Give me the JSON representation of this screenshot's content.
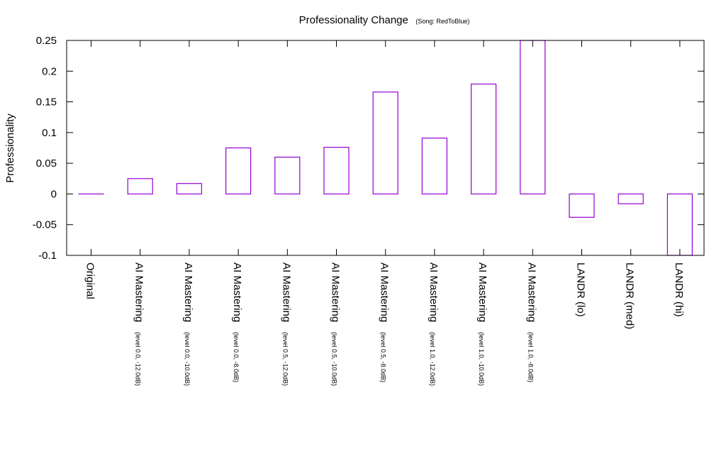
{
  "chart_data": {
    "type": "bar",
    "title": "Professionality Change",
    "subtitle": "(Song: RedToBlue)",
    "xlabel": "",
    "ylabel": "Professionality",
    "ylim": [
      -0.1,
      0.25
    ],
    "yticks": [
      "-0.1",
      "-0.05",
      "0",
      "0.05",
      "0.1",
      "0.15",
      "0.2",
      "0.25"
    ],
    "categories": [
      {
        "main": "Original",
        "sub": ""
      },
      {
        "main": "AI Mastering",
        "sub": "(level 0.0, -12.0dB)"
      },
      {
        "main": "AI Mastering",
        "sub": "(level 0.0, -10.0dB)"
      },
      {
        "main": "AI Mastering",
        "sub": "(level 0.0, -8.0dB)"
      },
      {
        "main": "AI Mastering",
        "sub": "(level 0.5, -12.0dB)"
      },
      {
        "main": "AI Mastering",
        "sub": "(level 0.5, -10.0dB)"
      },
      {
        "main": "AI Mastering",
        "sub": "(level 0.5, -8.0dB)"
      },
      {
        "main": "AI Mastering",
        "sub": "(level 1.0, -12.0dB)"
      },
      {
        "main": "AI Mastering",
        "sub": "(level 1.0, -10.0dB)"
      },
      {
        "main": "AI Mastering",
        "sub": "(level 1.0, -8.0dB)"
      },
      {
        "main": "LANDR (lo)",
        "sub": ""
      },
      {
        "main": "LANDR (med)",
        "sub": ""
      },
      {
        "main": "LANDR (hi)",
        "sub": ""
      }
    ],
    "values": [
      0.0,
      0.025,
      0.017,
      0.075,
      0.06,
      0.076,
      0.166,
      0.091,
      0.179,
      0.25,
      -0.038,
      -0.016,
      -0.1
    ],
    "bar_color": "#9400d3",
    "grid": false
  }
}
